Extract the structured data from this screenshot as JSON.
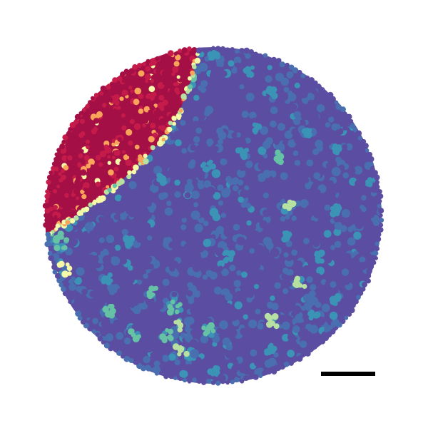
{
  "figure": {
    "palette": {
      "background": "#ffffff",
      "low": "#5b4ea2",
      "low_mid": "#4a6fb0",
      "mid": "#3b93b6",
      "mid_high": "#65c2a4",
      "high_mid": "#b7e1a1",
      "yellow": "#f5f9a8",
      "orange": "#f9a45a",
      "red": "#c51b4a",
      "dark_red": "#a40f45"
    },
    "scale_bar": {
      "color": "#000000",
      "label": ""
    },
    "regions": [
      {
        "name": "high-expression-region",
        "level": "high"
      },
      {
        "name": "boundary-region",
        "level": "medium"
      },
      {
        "name": "low-expression-region",
        "level": "low"
      }
    ]
  }
}
